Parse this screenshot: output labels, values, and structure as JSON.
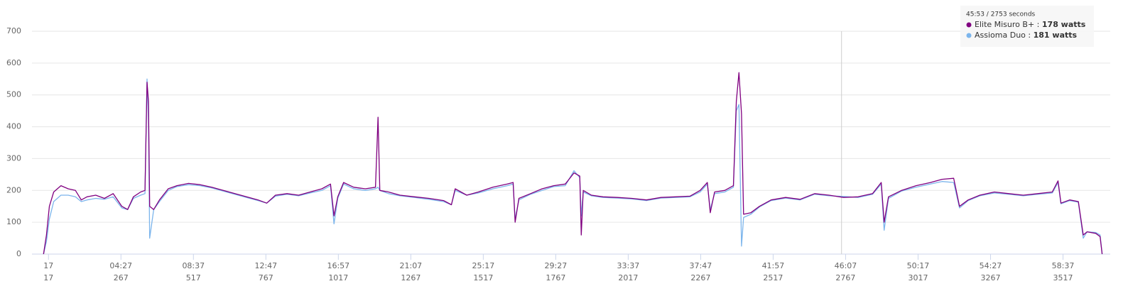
{
  "chart_data": {
    "type": "line",
    "x": [
      0,
      10,
      20,
      35,
      60,
      85,
      110,
      130,
      150,
      180,
      210,
      240,
      270,
      290,
      310,
      335,
      350,
      357,
      362,
      366,
      380,
      400,
      430,
      460,
      500,
      540,
      580,
      620,
      660,
      700,
      740,
      770,
      800,
      840,
      880,
      920,
      960,
      990,
      1002,
      1015,
      1035,
      1070,
      1110,
      1145,
      1154,
      1160,
      1190,
      1230,
      1280,
      1330,
      1380,
      1407,
      1420,
      1460,
      1500,
      1550,
      1600,
      1620,
      1627,
      1640,
      1680,
      1720,
      1760,
      1800,
      1830,
      1850,
      1855,
      1862,
      1890,
      1930,
      1980,
      2030,
      2080,
      2130,
      2180,
      2230,
      2265,
      2290,
      2300,
      2315,
      2350,
      2380,
      2390,
      2399,
      2408,
      2415,
      2440,
      2470,
      2510,
      2560,
      2610,
      2660,
      2710,
      2760,
      2810,
      2860,
      2890,
      2900,
      2915,
      2960,
      3010,
      3060,
      3100,
      3140,
      3160,
      3190,
      3230,
      3280,
      3330,
      3380,
      3430,
      3480,
      3500,
      3510,
      3540,
      3570,
      3587,
      3600,
      3630,
      3645,
      3652
    ],
    "series": [
      {
        "name": "Assioma Duo",
        "color": "#7cb5ec",
        "values": [
          0,
          40,
          110,
          165,
          185,
          185,
          180,
          165,
          170,
          175,
          172,
          180,
          145,
          140,
          175,
          185,
          190,
          550,
          420,
          50,
          140,
          165,
          200,
          212,
          218,
          215,
          208,
          198,
          188,
          178,
          168,
          160,
          182,
          188,
          183,
          192,
          200,
          215,
          95,
          175,
          220,
          205,
          200,
          205,
          210,
          200,
          190,
          183,
          178,
          172,
          165,
          155,
          200,
          185,
          192,
          205,
          215,
          220,
          110,
          170,
          188,
          200,
          212,
          215,
          262,
          240,
          120,
          195,
          183,
          178,
          176,
          173,
          168,
          176,
          178,
          180,
          195,
          220,
          140,
          190,
          195,
          210,
          450,
          470,
          25,
          115,
          125,
          148,
          168,
          176,
          170,
          188,
          183,
          181,
          178,
          188,
          220,
          75,
          175,
          198,
          210,
          220,
          228,
          225,
          145,
          168,
          183,
          192,
          188,
          183,
          188,
          192,
          225,
          158,
          168,
          163,
          50,
          70,
          68,
          60,
          0
        ]
      },
      {
        "name": "Elite Misuro B+",
        "color": "#800080",
        "values": [
          0,
          60,
          150,
          195,
          215,
          205,
          200,
          170,
          180,
          185,
          175,
          190,
          150,
          140,
          180,
          195,
          200,
          540,
          480,
          150,
          140,
          170,
          205,
          215,
          222,
          218,
          210,
          200,
          190,
          180,
          170,
          160,
          185,
          190,
          185,
          195,
          205,
          220,
          120,
          180,
          225,
          210,
          205,
          210,
          430,
          200,
          195,
          185,
          180,
          175,
          168,
          155,
          205,
          185,
          195,
          210,
          220,
          225,
          100,
          175,
          190,
          205,
          215,
          220,
          255,
          245,
          60,
          200,
          185,
          180,
          178,
          175,
          170,
          178,
          180,
          182,
          200,
          225,
          130,
          195,
          200,
          215,
          480,
          570,
          440,
          125,
          130,
          150,
          170,
          178,
          172,
          190,
          185,
          178,
          180,
          190,
          225,
          100,
          180,
          200,
          215,
          225,
          235,
          238,
          150,
          170,
          185,
          195,
          190,
          185,
          190,
          195,
          230,
          160,
          170,
          165,
          60,
          70,
          65,
          55,
          0
        ]
      }
    ],
    "xlim": [
      -40,
      3680
    ],
    "xticks": [
      17,
      {
        "value": 267,
        "label": "04:27"
      },
      {
        "value": 517,
        "label": "08:37"
      },
      {
        "value": 767,
        "label": "12:47"
      },
      {
        "value": 1017,
        "label": "16:57"
      },
      {
        "value": 1267,
        "label": "21:07"
      },
      {
        "value": 1517,
        "label": "25:17"
      },
      {
        "value": 1767,
        "label": "29:27"
      },
      {
        "value": 2017,
        "label": "33:37"
      },
      {
        "value": 2267,
        "label": "37:47"
      },
      {
        "value": 2517,
        "label": "41:57"
      },
      {
        "value": 2767,
        "label": "46:07"
      },
      {
        "value": 3017,
        "label": "50:17"
      },
      {
        "value": 3267,
        "label": "54:27"
      },
      {
        "value": 3517,
        "label": "58:37"
      }
    ],
    "xticks_seconds": [
      17,
      267,
      517,
      767,
      1017,
      1267,
      1517,
      1767,
      2017,
      2267,
      2517,
      2767,
      3017,
      3267,
      3517
    ],
    "ylim": [
      0,
      700
    ],
    "yticks": [
      0,
      100,
      200,
      300,
      400,
      500,
      600,
      700
    ],
    "grid": true,
    "cursor": {
      "x": 2753,
      "title": "45:53 / 2753 seconds",
      "separator": ":",
      "rows": [
        {
          "series": 1,
          "value": 178,
          "value_label": "178 watts"
        },
        {
          "series": 0,
          "value": 181,
          "value_label": "181 watts"
        }
      ]
    }
  }
}
